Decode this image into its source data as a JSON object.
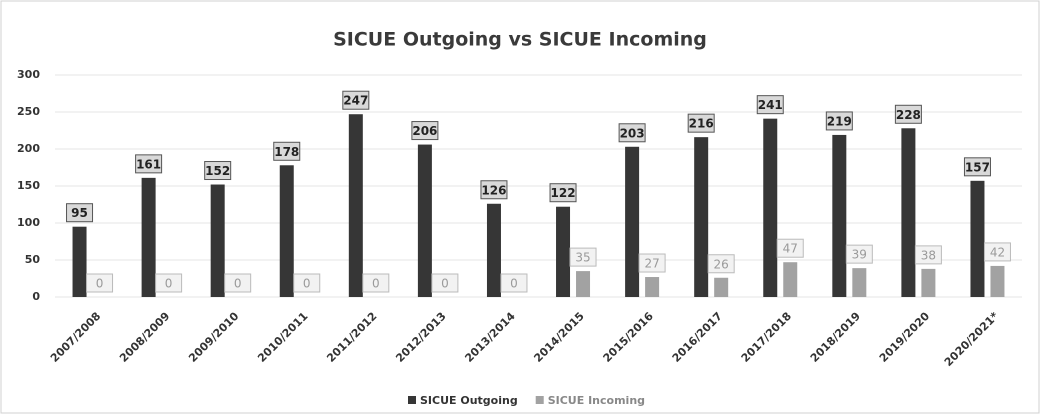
{
  "chart_data": {
    "type": "bar",
    "title": "SICUE Outgoing vs SICUE Incoming",
    "categories": [
      "2007/2008",
      "2008/2009",
      "2009/2010",
      "2010/2011",
      "2011/2012",
      "2012/2013",
      "2013/2014",
      "2014/2015",
      "2015/2016",
      "2016/2017",
      "2017/2018",
      "2018/2019",
      "2019/2020",
      "2020/2021*"
    ],
    "series": [
      {
        "name": "SICUE Outgoing",
        "color": "#363636",
        "values": [
          95,
          161,
          152,
          178,
          247,
          206,
          126,
          122,
          203,
          216,
          241,
          219,
          228,
          157
        ]
      },
      {
        "name": "SICUE Incoming",
        "color": "#a2a2a2",
        "values": [
          0,
          0,
          0,
          0,
          0,
          0,
          0,
          35,
          27,
          26,
          47,
          39,
          38,
          42
        ]
      }
    ],
    "ylim": [
      0,
      300
    ],
    "yticks": [
      0,
      50,
      100,
      150,
      200,
      250,
      300
    ],
    "grid": true,
    "legend": "bottom"
  }
}
